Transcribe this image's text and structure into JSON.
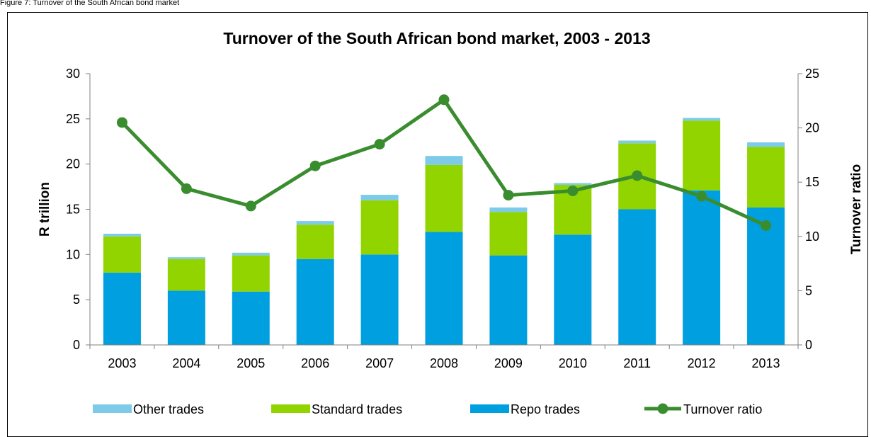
{
  "caption": "Figure 7: Turnover of the South African bond market",
  "colors": {
    "repo": "#009fe0",
    "standard": "#92d400",
    "other": "#7dcbe8",
    "ratio": "#3a8d2f",
    "axis": "#808080"
  },
  "chart_data": {
    "type": "bar",
    "stacked": true,
    "title": "Turnover of the South African bond market, 2003 - 2013",
    "ylabel": "R trillion",
    "y2label": "Turnover ratio",
    "ylim": [
      0,
      30
    ],
    "yticks": [
      "0",
      "5",
      "10",
      "15",
      "20",
      "25",
      "30"
    ],
    "y2lim": [
      0,
      25
    ],
    "y2ticks": [
      "0",
      "5",
      "10",
      "15",
      "20",
      "25"
    ],
    "grid": false,
    "legend_position": "bottom",
    "categories": [
      "2003",
      "2004",
      "2005",
      "2006",
      "2007",
      "2008",
      "2009",
      "2010",
      "2011",
      "2012",
      "2013"
    ],
    "series": [
      {
        "name": "Repo trades",
        "type": "bar",
        "values": [
          8.0,
          6.0,
          5.9,
          9.5,
          10.0,
          12.5,
          9.9,
          12.2,
          15.0,
          17.1,
          15.2
        ]
      },
      {
        "name": "Standard trades",
        "type": "bar",
        "values": [
          4.0,
          3.5,
          4.0,
          3.8,
          6.0,
          7.4,
          4.8,
          5.5,
          7.3,
          7.7,
          6.7
        ]
      },
      {
        "name": "Other trades",
        "type": "bar",
        "values": [
          0.3,
          0.2,
          0.3,
          0.4,
          0.6,
          1.0,
          0.5,
          0.2,
          0.3,
          0.3,
          0.5
        ]
      },
      {
        "name": "Turnover ratio",
        "type": "line",
        "axis": "right",
        "values": [
          20.5,
          14.4,
          12.8,
          16.5,
          18.5,
          22.6,
          13.8,
          14.2,
          15.6,
          13.7,
          11.0
        ]
      }
    ]
  }
}
